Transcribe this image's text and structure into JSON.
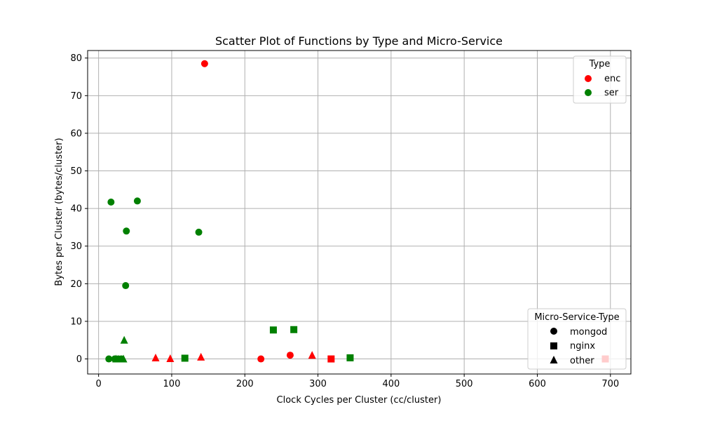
{
  "chart_data": {
    "type": "scatter",
    "title": "Scatter Plot of Functions by Type and Micro-Service",
    "xlabel": "Clock Cycles per Cluster (cc/cluster)",
    "ylabel": "Bytes per Cluster (bytes/cluster)",
    "xlim": [
      -15,
      728
    ],
    "ylim": [
      -4,
      82
    ],
    "xticks": [
      0,
      100,
      200,
      300,
      400,
      500,
      600,
      700
    ],
    "yticks": [
      0,
      10,
      20,
      30,
      40,
      50,
      60,
      70,
      80
    ],
    "grid": true,
    "colors": {
      "enc": "#ff0000",
      "ser": "#008000"
    },
    "type_legend": {
      "title": "Type",
      "placement": "top-right",
      "entries": [
        {
          "label": "enc",
          "color": "#ff0000"
        },
        {
          "label": "ser",
          "color": "#008000"
        }
      ]
    },
    "service_legend": {
      "title": "Micro-Service-Type",
      "placement": "lower-right",
      "entries": [
        {
          "label": "mongod",
          "marker": "circle"
        },
        {
          "label": "nginx",
          "marker": "square"
        },
        {
          "label": "other",
          "marker": "triangle"
        }
      ]
    },
    "points": [
      {
        "x": 145,
        "y": 78.5,
        "type": "enc",
        "service": "mongod"
      },
      {
        "x": 222,
        "y": 0.0,
        "type": "enc",
        "service": "mongod"
      },
      {
        "x": 262,
        "y": 1.0,
        "type": "enc",
        "service": "mongod"
      },
      {
        "x": 318,
        "y": 0.0,
        "type": "enc",
        "service": "nginx"
      },
      {
        "x": 693,
        "y": 0.0,
        "type": "enc",
        "service": "nginx"
      },
      {
        "x": 78,
        "y": 0.3,
        "type": "enc",
        "service": "other"
      },
      {
        "x": 98,
        "y": 0.1,
        "type": "enc",
        "service": "other"
      },
      {
        "x": 140,
        "y": 0.5,
        "type": "enc",
        "service": "other"
      },
      {
        "x": 292,
        "y": 1.0,
        "type": "enc",
        "service": "other"
      },
      {
        "x": 17,
        "y": 41.7,
        "type": "ser",
        "service": "mongod"
      },
      {
        "x": 53,
        "y": 42.0,
        "type": "ser",
        "service": "mongod"
      },
      {
        "x": 38,
        "y": 34.0,
        "type": "ser",
        "service": "mongod"
      },
      {
        "x": 137,
        "y": 33.7,
        "type": "ser",
        "service": "mongod"
      },
      {
        "x": 37,
        "y": 19.5,
        "type": "ser",
        "service": "mongod"
      },
      {
        "x": 14,
        "y": 0.0,
        "type": "ser",
        "service": "mongod"
      },
      {
        "x": 22,
        "y": 0.0,
        "type": "ser",
        "service": "mongod"
      },
      {
        "x": 27,
        "y": 0.0,
        "type": "ser",
        "service": "mongod"
      },
      {
        "x": 31,
        "y": 0.0,
        "type": "ser",
        "service": "mongod"
      },
      {
        "x": 239,
        "y": 7.7,
        "type": "ser",
        "service": "nginx"
      },
      {
        "x": 267,
        "y": 7.8,
        "type": "ser",
        "service": "nginx"
      },
      {
        "x": 118,
        "y": 0.2,
        "type": "ser",
        "service": "nginx"
      },
      {
        "x": 344,
        "y": 0.3,
        "type": "ser",
        "service": "nginx"
      },
      {
        "x": 35,
        "y": 5.0,
        "type": "ser",
        "service": "other"
      },
      {
        "x": 24,
        "y": 0.0,
        "type": "ser",
        "service": "other"
      },
      {
        "x": 34,
        "y": 0.0,
        "type": "ser",
        "service": "other"
      }
    ]
  }
}
